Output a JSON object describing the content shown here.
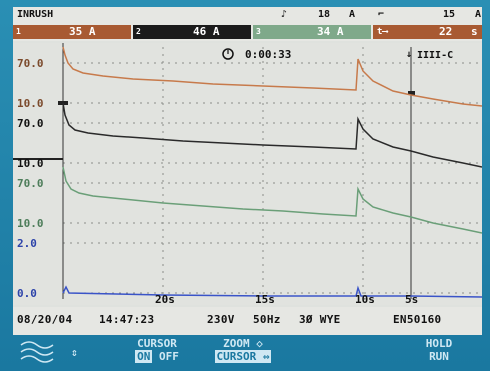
{
  "header": {
    "mode": "INRUSH",
    "ch1_value": "35 A",
    "ch2_value": "46 A",
    "ch3_value": "34 A",
    "peak_label": "18",
    "peak_unit": "A",
    "ch1_index": "1",
    "ch2_index": "2",
    "ch3_index": "3",
    "trigger_level": "15",
    "trigger_unit": "A",
    "time_limit_value": "22",
    "time_limit_unit": "s"
  },
  "plot": {
    "timer": "0:00:33",
    "y_labels": [
      "70.0",
      "10.0",
      "70.0",
      "10.0",
      "70.0",
      "10.0",
      "2.0",
      "0.0"
    ],
    "x_ticks": [
      "20s",
      "15s",
      "10s",
      "5s"
    ],
    "battery_symbol": "IIII-C"
  },
  "footer": {
    "date": "08/20/04",
    "time": "14:47:23",
    "voltage": "230V",
    "frequency": "50Hz",
    "config": "3Ø WYE",
    "standard": "EN50160"
  },
  "softkeys": {
    "cursor_label": "CURSOR",
    "on": "ON",
    "off": "OFF",
    "zoom_label": "ZOOM ◇",
    "zoom_cursor": "CURSOR ⇔",
    "hold": "HOLD",
    "run": "RUN"
  },
  "colors": {
    "trace1": "#c77a4b",
    "trace2": "#2a2a2a",
    "trace3": "#6a9f78",
    "trace4": "#3a54c8",
    "bezel": "#1f7fa4"
  }
}
